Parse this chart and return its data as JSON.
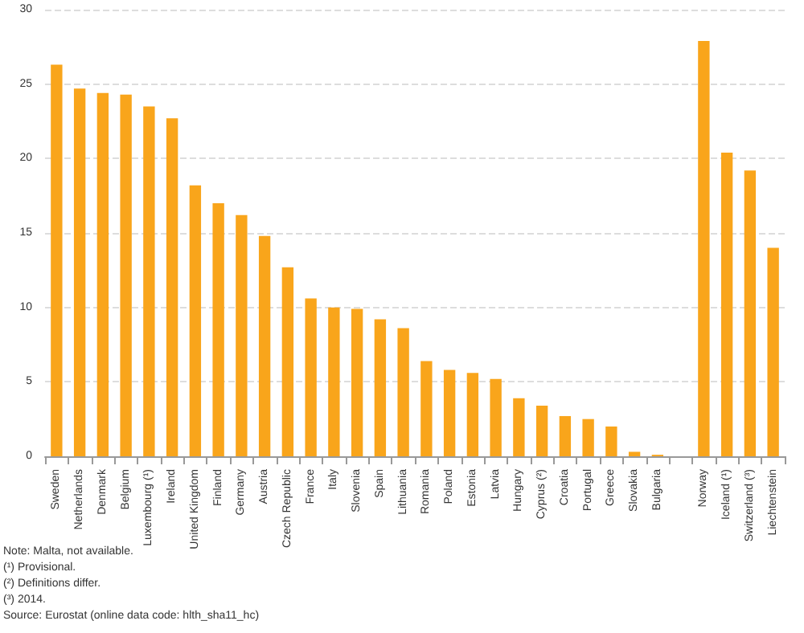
{
  "chart_data": {
    "type": "bar",
    "categories": [
      "Sweden",
      "Netherlands",
      "Denmark",
      "Belgium",
      "Luxembourg (¹)",
      "Ireland",
      "United Kingdom",
      "Finland",
      "Germany",
      "Austria",
      "Czech Republic",
      "France",
      "Italy",
      "Slovenia",
      "Spain",
      "Lithuania",
      "Romania",
      "Poland",
      "Estonia",
      "Latvia",
      "Hungary",
      "Cyprus (²)",
      "Croatia",
      "Portugal",
      "Greece",
      "Slovakia",
      "Bulgaria",
      null,
      "Norway",
      "Iceland (¹)",
      "Switzerland (³)",
      "Liechtenstein"
    ],
    "values": [
      26.3,
      24.7,
      24.4,
      24.3,
      23.5,
      22.7,
      18.2,
      17.0,
      16.2,
      14.8,
      12.7,
      10.6,
      10.0,
      9.9,
      9.2,
      8.6,
      6.4,
      5.8,
      5.6,
      5.2,
      3.9,
      3.4,
      2.7,
      2.5,
      2.0,
      0.3,
      0.1,
      null,
      27.9,
      20.4,
      19.2,
      14.0
    ],
    "color": "#f9a51b",
    "ylim": [
      0,
      30
    ],
    "yticks": [
      0,
      5,
      10,
      15,
      20,
      25,
      30
    ],
    "grid": "y",
    "annotations": [
      "Note: Malta, not available.",
      "(¹) Provisional.",
      "(²) Definitions differ.",
      "(³) 2014.",
      "Source: Eurostat (online data code: hlth_sha11_hc)"
    ]
  }
}
